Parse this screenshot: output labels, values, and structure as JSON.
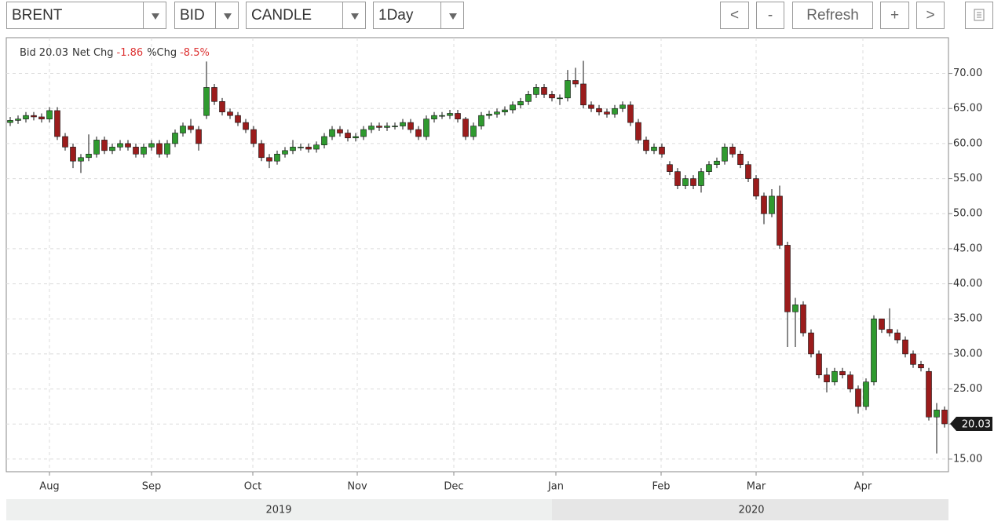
{
  "toolbar": {
    "symbol": "BRENT",
    "price_type": "BID",
    "chart_style": "CANDLE",
    "interval": "1Day",
    "buttons": [
      "<",
      "-",
      "Refresh",
      "+",
      ">"
    ]
  },
  "chart_data": {
    "type": "candlestick",
    "summary": [
      {
        "label": "Bid",
        "value": "20.03"
      },
      {
        "label": "Net Chg",
        "value": "-1.86"
      },
      {
        "label": "%Chg",
        "value": "-8.5%"
      }
    ],
    "open": [
      63,
      63.3,
      63.5,
      64,
      63.8,
      63.5,
      64.7,
      61,
      59.5,
      57.5,
      58,
      58.5,
      60.5,
      59,
      59.5,
      60,
      59.5,
      58.5,
      59.5,
      60,
      58.5,
      60,
      61.5,
      62.5,
      62,
      64,
      68,
      66,
      64.5,
      64,
      63,
      62,
      60,
      58,
      57.5,
      58.5,
      59,
      59.5,
      59.5,
      59.2,
      59.8,
      61,
      62,
      61.5,
      60.8,
      61,
      62,
      62.5,
      62.3,
      62.5,
      62.5,
      63,
      62,
      61,
      63.5,
      64,
      64,
      64.3,
      63.5,
      61,
      62.5,
      64,
      64.2,
      64.5,
      64.8,
      65.5,
      66,
      67,
      68,
      67,
      66.5,
      66.5,
      69,
      68.5,
      65.5,
      65,
      64.5,
      64.2,
      65,
      65.5,
      63,
      60.5,
      59,
      59.5,
      57,
      56,
      54,
      55,
      54,
      56,
      57,
      57.5,
      59.5,
      58.5,
      57,
      55,
      52.5,
      50,
      52.5,
      45.5,
      36,
      37,
      33,
      30,
      27,
      26,
      27.5,
      27,
      25,
      22.5,
      26,
      35,
      33.5,
      33,
      32,
      30,
      28.5,
      27.5,
      21,
      22
    ],
    "high": [
      63.8,
      64,
      64.5,
      64.5,
      64.3,
      65.2,
      65.2,
      61.5,
      60,
      58.5,
      61.3,
      61,
      61,
      60,
      60.5,
      60.5,
      60,
      60,
      60.5,
      60.5,
      60.5,
      62,
      63,
      63.5,
      62.5,
      71.7,
      68.5,
      66.5,
      65,
      64.5,
      63.5,
      62.5,
      60.5,
      58.5,
      59,
      59.5,
      60.5,
      60,
      60,
      60.3,
      61.5,
      62.5,
      62.5,
      62,
      61.5,
      62.5,
      63,
      63,
      63,
      63,
      63.5,
      63.5,
      62.5,
      64,
      64.5,
      64.5,
      64.8,
      64.8,
      63.8,
      63,
      64.5,
      64.7,
      65,
      65.3,
      66,
      66.5,
      67.5,
      68.5,
      68.5,
      67.5,
      67,
      70.5,
      70.8,
      71.8,
      66,
      65.5,
      65,
      65.5,
      66,
      66,
      63.5,
      61,
      60,
      60,
      57.5,
      56.5,
      55.5,
      55.5,
      56.5,
      57.5,
      58,
      60,
      60,
      59,
      57.5,
      55.5,
      53,
      53.5,
      54,
      46,
      38,
      37.5,
      33.5,
      30.5,
      28,
      28,
      28,
      27.5,
      25.5,
      26.5,
      35.5,
      35,
      36.5,
      33.5,
      32.5,
      30.5,
      29,
      28,
      23,
      22.5
    ],
    "low": [
      62.5,
      62.8,
      63,
      63.3,
      63,
      63,
      60.5,
      59,
      56.5,
      55.8,
      57.5,
      58,
      58.5,
      58.5,
      59,
      59,
      58,
      58,
      59,
      58,
      58,
      59.5,
      61,
      61.5,
      59,
      63.5,
      65.5,
      64,
      63.5,
      62.5,
      61.5,
      59.5,
      57.5,
      56.5,
      57,
      58,
      58.5,
      59,
      58.7,
      58.7,
      59.3,
      60.5,
      61,
      60.3,
      60.3,
      60.5,
      61.5,
      61.8,
      61.8,
      62,
      62,
      61.5,
      60.5,
      60.5,
      63,
      63.5,
      63.5,
      63,
      60.5,
      60.5,
      62,
      63.5,
      63.7,
      64,
      64.3,
      65,
      65.5,
      66.5,
      66.5,
      66,
      65.5,
      66,
      68,
      65,
      64.5,
      64,
      63.7,
      63.7,
      64.5,
      62.5,
      60,
      58.5,
      58.5,
      58,
      55.5,
      53.5,
      53.5,
      53.5,
      53,
      55.5,
      56.5,
      57,
      58,
      56.5,
      54.5,
      52,
      48.5,
      49.5,
      45,
      31,
      31,
      32.5,
      29.5,
      26.5,
      24.5,
      25.5,
      26.5,
      24.5,
      21.5,
      22,
      25.5,
      33,
      32.5,
      31.5,
      29.5,
      28,
      27.5,
      20.5,
      15.8,
      19.5
    ],
    "close": [
      63.3,
      63.5,
      64,
      63.8,
      63.5,
      64.7,
      61,
      59.5,
      57.5,
      58,
      58.5,
      60.5,
      59,
      59.5,
      60,
      59.5,
      58.5,
      59.5,
      60,
      58.5,
      60,
      61.5,
      62.5,
      62,
      60,
      68,
      66,
      64.5,
      64,
      63,
      62,
      60,
      58,
      57.5,
      58.5,
      59,
      59.5,
      59.5,
      59.2,
      59.8,
      61,
      62,
      61.5,
      60.8,
      61,
      62,
      62.5,
      62.3,
      62.5,
      62.5,
      63,
      62,
      61,
      63.5,
      64,
      64,
      64.3,
      63.5,
      61,
      62.5,
      64,
      64.2,
      64.5,
      64.8,
      65.5,
      66,
      67,
      68,
      67,
      66.5,
      66.5,
      69,
      68.5,
      65.5,
      65,
      64.5,
      64.2,
      65,
      65.5,
      63,
      60.5,
      59,
      59.5,
      58.5,
      56,
      54,
      55,
      54,
      56,
      57,
      57.5,
      59.5,
      58.5,
      57,
      55,
      52.5,
      50,
      52.5,
      45.5,
      36,
      37,
      33,
      30,
      27,
      26,
      27.5,
      27,
      25,
      22.5,
      26,
      35,
      33.5,
      33,
      32,
      30,
      28.5,
      28,
      21,
      22,
      20.03
    ],
    "up_color": "#2f9a2f",
    "down_color": "#9b1c1c",
    "ylim": [
      13.2,
      75.1
    ],
    "yticks": [
      {
        "value": 15,
        "label": "15.00"
      },
      {
        "value": 20,
        "label": "20.00"
      },
      {
        "value": 25,
        "label": "25.00"
      },
      {
        "value": 30,
        "label": "30.00"
      },
      {
        "value": 35,
        "label": "35.00"
      },
      {
        "value": 40,
        "label": "40.00"
      },
      {
        "value": 45,
        "label": "45.00"
      },
      {
        "value": 50,
        "label": "50.00"
      },
      {
        "value": 55,
        "label": "55.00"
      },
      {
        "value": 60,
        "label": "60.00"
      },
      {
        "value": 65,
        "label": "65.00"
      },
      {
        "value": 70,
        "label": "70.00"
      }
    ],
    "xticks": [
      {
        "value": 5,
        "label": "Aug"
      },
      {
        "value": 18,
        "label": "Sep"
      },
      {
        "value": 30.9,
        "label": "Oct"
      },
      {
        "value": 44.2,
        "label": "Nov"
      },
      {
        "value": 56.5,
        "label": "Dec"
      },
      {
        "value": 69.5,
        "label": "Jan"
      },
      {
        "value": 82.9,
        "label": "Feb"
      },
      {
        "value": 95,
        "label": "Mar"
      },
      {
        "value": 108.6,
        "label": "Apr"
      }
    ],
    "years": [
      {
        "value": 34.2,
        "label": "2019"
      },
      {
        "value": 94.4,
        "label": "2020"
      }
    ],
    "grid": true
  }
}
